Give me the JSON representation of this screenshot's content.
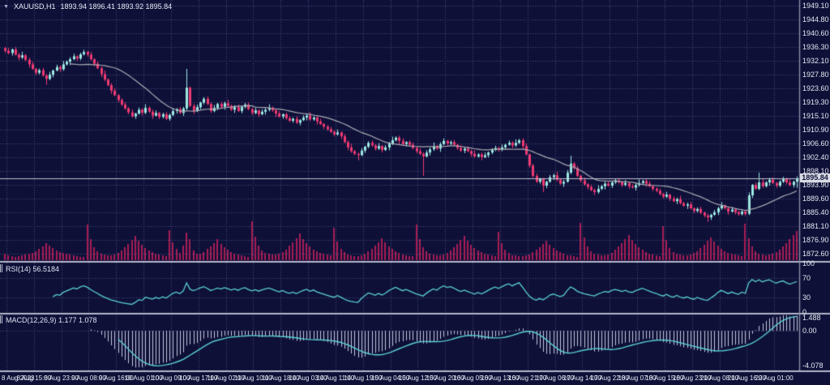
{
  "window": {
    "title_symbol": "XAUUSD,H1",
    "title_ohlc": "1893.94 1896.41 1893.92 1895.84"
  },
  "colors": {
    "background": "#0e1038",
    "grid": "#474e78",
    "bull_candle": "#9ce8e2",
    "bear_candle": "#ef3a72",
    "ma_line": "#a9a9b2",
    "volume": "#a81d55",
    "indicator_line": "#5ad0d4",
    "macd_histogram": "#c6c9de",
    "separator": "#b4b8c8",
    "axis_text": "#e6e8f2",
    "current_price_bg": "#d8dae4"
  },
  "price_axis": {
    "labels": [
      "1949.10",
      "1944.80",
      "1940.60",
      "1936.30",
      "1932.10",
      "1927.80",
      "1923.60",
      "1919.30",
      "1915.10",
      "1910.90",
      "1906.60",
      "1902.40",
      "1898.10",
      "1893.90",
      "1889.60",
      "1885.40",
      "1881.10",
      "1876.90",
      "1872.60"
    ],
    "current_price": "1895.84"
  },
  "time_axis": {
    "labels": [
      "8 Aug 2023",
      "8 Aug 15:00",
      "8 Aug 23:00",
      "9 Aug 08:00",
      "9 Aug 16:00",
      "10 Aug 01:00",
      "10 Aug 09:00",
      "10 Aug 17:00",
      "11 Aug 02:00",
      "11 Aug 10:00",
      "11 Aug 18:00",
      "14 Aug 03:00",
      "14 Aug 11:00",
      "14 Aug 19:00",
      "15 Aug 04:00",
      "15 Aug 12:00",
      "15 Aug 20:00",
      "16 Aug 05:00",
      "16 Aug 13:00",
      "16 Aug 21:00",
      "17 Aug 06:00",
      "17 Aug 14:00",
      "17 Aug 22:00",
      "18 Aug 07:00",
      "18 Aug 15:00",
      "18 Aug 23:00",
      "21 Aug 08:00",
      "21 Aug 16:00",
      "22 Aug 01:00"
    ]
  },
  "rsi_panel": {
    "label": "RSI(14) 56.5184",
    "ticks": [
      "100",
      "70",
      "30",
      "0"
    ],
    "tick_values": [
      100,
      70,
      30,
      0
    ],
    "levels": [
      70,
      30
    ]
  },
  "macd_panel": {
    "label": "MACD(12,26,9) 1.177 1.078",
    "ticks": [
      "1.488",
      "0.00",
      "-4.078"
    ],
    "tick_values": [
      1.488,
      0,
      -4.078
    ]
  },
  "chart_data": {
    "type": "candlestick",
    "symbol": "XAUUSD",
    "timeframe": "H1",
    "title": "XAUUSD,H1 1893.94 1896.41 1893.92 1895.84",
    "ohlc_current": {
      "open": 1893.94,
      "high": 1896.41,
      "low": 1893.92,
      "close": 1895.84
    },
    "ylim": [
      1870.35,
      1950.85
    ],
    "grid": true,
    "first_open": 1936.0,
    "closes": [
      1935.2,
      1934.5,
      1935.6,
      1934.0,
      1933.1,
      1933.8,
      1932.4,
      1931.0,
      1929.6,
      1928.4,
      1929.2,
      1927.6,
      1926.5,
      1927.8,
      1929.1,
      1930.2,
      1929.5,
      1931.0,
      1931.8,
      1932.6,
      1933.5,
      1932.8,
      1934.1,
      1934.8,
      1934.0,
      1932.6,
      1931.2,
      1929.8,
      1928.0,
      1926.3,
      1924.6,
      1922.9,
      1921.5,
      1920.0,
      1918.6,
      1917.4,
      1916.2,
      1915.0,
      1915.8,
      1917.0,
      1916.1,
      1917.6,
      1916.4,
      1915.2,
      1916.0,
      1914.8,
      1915.6,
      1914.2,
      1915.4,
      1916.6,
      1917.2,
      1916.0,
      1917.4,
      1923.8,
      1918.2,
      1916.6,
      1917.8,
      1919.2,
      1920.4,
      1918.8,
      1916.6,
      1917.6,
      1918.8,
      1917.9,
      1919.0,
      1918.2,
      1917.0,
      1917.8,
      1916.6,
      1917.9,
      1918.6,
      1917.2,
      1916.0,
      1916.8,
      1915.6,
      1916.4,
      1917.0,
      1917.6,
      1916.8,
      1915.8,
      1914.9,
      1915.6,
      1914.4,
      1913.6,
      1914.2,
      1913.0,
      1913.8,
      1914.6,
      1915.2,
      1914.0,
      1914.6,
      1913.4,
      1912.6,
      1911.8,
      1911.0,
      1910.2,
      1909.4,
      1910.0,
      1908.8,
      1907.0,
      1905.4,
      1904.2,
      1903.4,
      1903.0,
      1904.4,
      1905.6,
      1906.8,
      1906.0,
      1905.0,
      1905.8,
      1904.6,
      1905.4,
      1906.6,
      1907.6,
      1908.4,
      1907.4,
      1906.4,
      1907.0,
      1906.2,
      1905.2,
      1904.2,
      1903.4,
      1902.6,
      1903.8,
      1904.8,
      1905.8,
      1905.0,
      1906.4,
      1907.4,
      1906.6,
      1907.0,
      1906.2,
      1905.2,
      1904.4,
      1905.0,
      1904.2,
      1903.4,
      1902.6,
      1903.2,
      1902.4,
      1903.0,
      1903.8,
      1904.6,
      1905.2,
      1904.6,
      1905.4,
      1906.2,
      1906.8,
      1906.0,
      1906.8,
      1907.6,
      1905.8,
      1903.2,
      1899.8,
      1896.6,
      1894.8,
      1895.6,
      1893.6,
      1894.8,
      1896.2,
      1896.8,
      1895.4,
      1894.2,
      1894.8,
      1897.6,
      1900.4,
      1899.0,
      1896.6,
      1895.2,
      1894.0,
      1893.2,
      1892.2,
      1891.6,
      1892.6,
      1893.4,
      1894.2,
      1893.6,
      1894.6,
      1895.2,
      1894.6,
      1893.8,
      1894.4,
      1893.4,
      1893.0,
      1893.8,
      1894.4,
      1895.0,
      1894.2,
      1893.4,
      1892.6,
      1892.0,
      1891.0,
      1890.2,
      1890.8,
      1889.6,
      1888.8,
      1889.4,
      1888.2,
      1887.4,
      1887.8,
      1886.6,
      1885.8,
      1886.4,
      1885.2,
      1884.4,
      1883.8,
      1884.6,
      1885.4,
      1886.6,
      1887.4,
      1886.6,
      1885.6,
      1886.2,
      1885.4,
      1884.8,
      1885.6,
      1884.9,
      1890.6,
      1893.8,
      1892.6,
      1894.6,
      1893.4,
      1894.6,
      1895.4,
      1894.4,
      1893.6,
      1894.8,
      1895.6,
      1894.6,
      1893.8,
      1894.8,
      1895.84
    ],
    "wick_up_pattern": [
      0.4,
      0.9,
      0.3,
      0.7,
      0.5,
      1.1,
      0.4,
      0.6,
      0.8,
      0.3,
      0.5,
      0.7
    ],
    "wick_dn_pattern": [
      0.6,
      0.4,
      0.8,
      0.3,
      0.9,
      0.5,
      0.4,
      1.0,
      0.3,
      0.7,
      0.5,
      0.4
    ],
    "wick_overrides": {
      "12": [
        0.5,
        1.8
      ],
      "53": [
        5.8,
        0.6
      ],
      "103": [
        0.4,
        1.6
      ],
      "122": [
        0.5,
        6.0
      ],
      "157": [
        0.4,
        2.0
      ],
      "165": [
        2.4,
        0.5
      ],
      "205": [
        0.4,
        1.4
      ],
      "220": [
        3.0,
        0.4
      ],
      "231": [
        0.6,
        1.9
      ]
    },
    "volumes": [
      8,
      6,
      5,
      4,
      5,
      6,
      7,
      8,
      9,
      11,
      14,
      17,
      21,
      18,
      15,
      12,
      10,
      9,
      8,
      7,
      6,
      5,
      4,
      4,
      44,
      26,
      16,
      11,
      8,
      7,
      6,
      6,
      7,
      9,
      12,
      16,
      20,
      25,
      30,
      24,
      19,
      15,
      12,
      10,
      8,
      7,
      6,
      5,
      37,
      22,
      14,
      9,
      18,
      34,
      26,
      12,
      8,
      8,
      10,
      14,
      17,
      21,
      26,
      20,
      16,
      13,
      10,
      8,
      7,
      6,
      5,
      4,
      48,
      29,
      18,
      12,
      9,
      8,
      7,
      7,
      8,
      10,
      13,
      18,
      22,
      27,
      33,
      26,
      21,
      17,
      13,
      11,
      9,
      8,
      7,
      6,
      40,
      23,
      14,
      10,
      7,
      6,
      5,
      5,
      6,
      8,
      11,
      14,
      18,
      22,
      27,
      22,
      17,
      14,
      11,
      9,
      7,
      6,
      5,
      5,
      44,
      26,
      16,
      11,
      8,
      7,
      6,
      6,
      7,
      9,
      12,
      16,
      20,
      25,
      30,
      24,
      19,
      15,
      12,
      10,
      8,
      7,
      6,
      5,
      35,
      21,
      13,
      9,
      6,
      6,
      5,
      5,
      6,
      7,
      10,
      13,
      16,
      20,
      24,
      19,
      15,
      12,
      10,
      8,
      6,
      6,
      5,
      4,
      46,
      28,
      17,
      11,
      8,
      7,
      6,
      6,
      7,
      9,
      13,
      17,
      21,
      26,
      31,
      25,
      20,
      16,
      13,
      10,
      8,
      7,
      6,
      5,
      42,
      25,
      15,
      10,
      8,
      7,
      6,
      6,
      7,
      9,
      11,
      15,
      19,
      24,
      28,
      23,
      18,
      14,
      11,
      9,
      8,
      7,
      6,
      5,
      45,
      27,
      17,
      11,
      8,
      7,
      6,
      7,
      8,
      10,
      13,
      17,
      21,
      26,
      31,
      36
    ],
    "ma_period": 20,
    "indicators": {
      "rsi": {
        "period": 14,
        "last": 56.5184,
        "range": [
          0,
          100
        ],
        "levels": [
          30,
          70
        ]
      },
      "macd": {
        "fast": 12,
        "slow": 26,
        "signal": 9,
        "last_main": 1.177,
        "last_signal": 1.078,
        "ylim": [
          -4.6,
          1.9
        ],
        "ticks": [
          1.488,
          0,
          -4.078
        ]
      }
    }
  }
}
